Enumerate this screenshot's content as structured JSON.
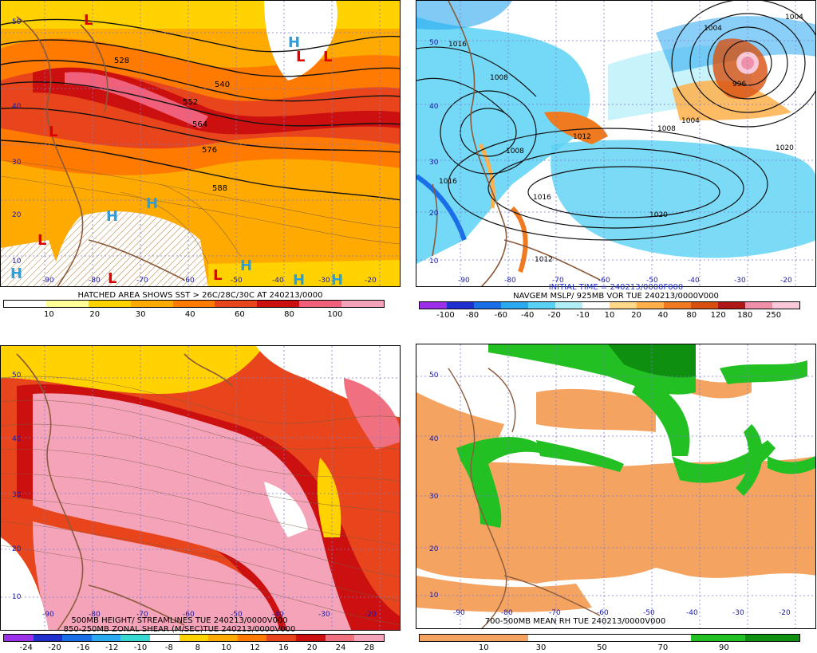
{
  "panels": [
    {
      "id": "tl",
      "caption_lines": [
        "HATCHED AREA SHOWS SST > 26C/28C/30C AT 240213/0000"
      ],
      "colorbar": {
        "colors": [
          "#ffffff",
          "#ffff9a",
          "#ffd200",
          "#ffaa00",
          "#ff7a00",
          "#e8451c",
          "#cc0f0f",
          "#f0607a",
          "#f4a3b8"
        ],
        "ticks": [
          "10",
          "20",
          "30",
          "40",
          "60",
          "80",
          "100"
        ]
      },
      "contour_labels": [
        "528",
        "540",
        "552",
        "564",
        "576",
        "588"
      ],
      "systems": [
        {
          "t": "L",
          "c": "#e00000"
        },
        {
          "t": "H",
          "c": "#2aa0e0"
        },
        {
          "t": "L",
          "c": "#e00000"
        },
        {
          "t": "L",
          "c": "#e00000"
        },
        {
          "t": "L",
          "c": "#e00000"
        },
        {
          "t": "H",
          "c": "#2aa0e0"
        },
        {
          "t": "H",
          "c": "#2aa0e0"
        },
        {
          "t": "L",
          "c": "#e00000"
        },
        {
          "t": "H",
          "c": "#2aa0e0"
        },
        {
          "t": "L",
          "c": "#e00000"
        },
        {
          "t": "L",
          "c": "#e00000"
        },
        {
          "t": "H",
          "c": "#2aa0e0"
        },
        {
          "t": "H",
          "c": "#2aa0e0"
        },
        {
          "t": "H",
          "c": "#2aa0e0"
        }
      ],
      "lat_labels": [
        "50",
        "40",
        "30",
        "20",
        "10"
      ],
      "lon_labels": [
        "-90",
        "-80",
        "-70",
        "-60",
        "-50",
        "-40",
        "-30",
        "-20"
      ]
    },
    {
      "id": "tr",
      "caption_lines": [
        "INITIAL TIME = 240213/0000F000",
        "NAVGEM MSLP/ 925MB VOR TUE 240213/0000V000"
      ],
      "colorbar": {
        "colors": [
          "#9b30e8",
          "#2030d0",
          "#1a6ee8",
          "#2aa8f0",
          "#5ad2f5",
          "#b0eef8",
          "#ffffff",
          "#ffd88a",
          "#ffb04a",
          "#f07a20",
          "#d85010",
          "#b01818",
          "#f090a8",
          "#f8c8d8"
        ],
        "ticks": [
          "-100",
          "-80",
          "-60",
          "-40",
          "-20",
          "-10",
          "10",
          "20",
          "40",
          "80",
          "120",
          "180",
          "250"
        ]
      },
      "contour_labels": [
        "1016",
        "1008",
        "1004",
        "1004",
        "1008",
        "1012",
        "1016",
        "1016",
        "1020",
        "1020",
        "1004",
        "996",
        "1012",
        "1008"
      ],
      "lat_labels": [
        "50",
        "40",
        "30",
        "20",
        "10"
      ],
      "lon_labels": [
        "-90",
        "-80",
        "-70",
        "-60",
        "-50",
        "-40",
        "-30",
        "-20"
      ]
    },
    {
      "id": "bl",
      "caption_lines": [
        "500MB HEIGHT/ STREAMLINES TUE 240213/0000V000",
        "850-250MB ZONAL SHEAR (M/SEC)TUE 240213/0000V000"
      ],
      "colorbar": {
        "colors": [
          "#9b30e8",
          "#2030d0",
          "#1a6ee8",
          "#2aa8f0",
          "#34d8d0",
          "#ffffff",
          "#ffd200",
          "#ffaa00",
          "#ff7a00",
          "#e8451c",
          "#cc0f0f",
          "#f07080",
          "#f4a3b8"
        ],
        "ticks": [
          "-24",
          "-20",
          "-16",
          "-12",
          "-10",
          "-8",
          "8",
          "10",
          "12",
          "16",
          "20",
          "24",
          "28"
        ]
      },
      "lat_labels": [
        "50",
        "40",
        "30",
        "20",
        "10"
      ],
      "lon_labels": [
        "-90",
        "-80",
        "-70",
        "-60",
        "-50",
        "-40",
        "-30",
        "-20"
      ]
    },
    {
      "id": "br",
      "caption_lines": [
        "700-500MB MEAN RH TUE 240213/0000V000"
      ],
      "colorbar": {
        "colors": [
          "#f4a460",
          "#f4a460",
          "#ffffff",
          "#ffffff",
          "#ffffff",
          "#22c022",
          "#0f8f0f"
        ],
        "ticks": [
          "10",
          "30",
          "50",
          "70",
          "90"
        ]
      },
      "lat_labels": [
        "50",
        "40",
        "30",
        "20",
        "10"
      ],
      "lon_labels": [
        "-90",
        "-80",
        "-70",
        "-60",
        "-50",
        "-40",
        "-30",
        "-20"
      ]
    }
  ]
}
